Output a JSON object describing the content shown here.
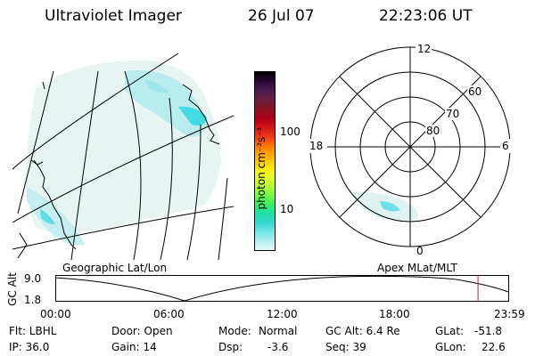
{
  "header": {
    "title": "Ultraviolet Imager",
    "date": "26 Jul 07",
    "time": "22:23:06 UT"
  },
  "colorbar": {
    "unit_label": "photon cm⁻²s⁻¹",
    "ticks": [
      "100",
      "10"
    ],
    "colors": [
      "#000000",
      "#2a0a3a",
      "#4a1a4a",
      "#6a2040",
      "#8a1020",
      "#b00018",
      "#d81818",
      "#f04010",
      "#ff8000",
      "#ffb000",
      "#ffe000",
      "#f0ff20",
      "#c0ff30",
      "#80ff40",
      "#40f060",
      "#20e0a0",
      "#30d8d0",
      "#70e4e8",
      "#b0eef0",
      "#e4f6f6"
    ]
  },
  "left_panel": {
    "label": "Geographic Lat/Lon"
  },
  "right_panel": {
    "label": "Apex MLat/MLT",
    "mlt_labels": {
      "top": "12",
      "left": "18",
      "right": "6",
      "bottom": "0"
    },
    "lat_labels": [
      "60",
      "70",
      "80"
    ]
  },
  "timeline": {
    "ylabel": "GC Alt",
    "y_ticks": [
      "9.0",
      "1.8"
    ],
    "x_ticks": [
      "00:00",
      "06:00",
      "12:00",
      "18:00",
      "23:59"
    ],
    "marker_time": "22:23"
  },
  "info": {
    "col1": [
      "Flt: LBHL",
      "IP: 36.0"
    ],
    "col2": [
      "Door: Open",
      "Gain: 14"
    ],
    "col3_labels": [
      "Mode:",
      "Dsp:"
    ],
    "col3_values": [
      "Normal",
      "-3.6"
    ],
    "col4": [
      "GC Alt: 6.4 Re",
      "Seq: 39"
    ],
    "col5_labels": [
      "GLat:",
      "GLon:"
    ],
    "col5_values": [
      "-51.8",
      "22.6"
    ]
  }
}
